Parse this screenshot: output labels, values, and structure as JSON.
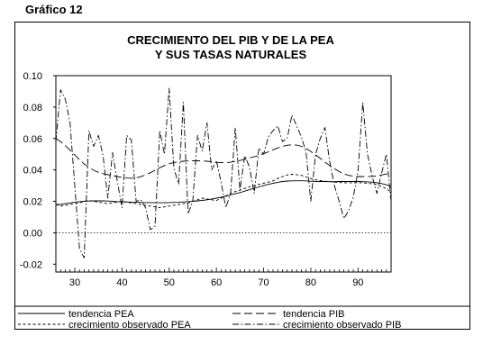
{
  "page_label": "Gráfico 12",
  "chart_data": {
    "type": "line",
    "title_lines": [
      "CRECIMIENTO DEL PIB Y DE LA PEA",
      "Y SUS TASAS NATURALES"
    ],
    "xlabel": "",
    "ylabel": "",
    "xlim": [
      1926,
      1997
    ],
    "ylim": [
      -0.025,
      0.1
    ],
    "x_ticks": [
      30,
      40,
      50,
      60,
      70,
      80,
      90
    ],
    "y_ticks": [
      "0.10",
      "0.08",
      "0.06",
      "0.04",
      "0.02",
      "0.00",
      "-0.02"
    ],
    "y_tick_values": [
      0.1,
      0.08,
      0.06,
      0.04,
      0.02,
      0.0,
      -0.02
    ],
    "zero_reference_line": true,
    "grid": false,
    "legend_position": "bottom",
    "x": [
      1926,
      1927,
      1928,
      1929,
      1930,
      1931,
      1932,
      1933,
      1934,
      1935,
      1936,
      1937,
      1938,
      1939,
      1940,
      1941,
      1942,
      1943,
      1944,
      1945,
      1946,
      1947,
      1948,
      1949,
      1950,
      1951,
      1952,
      1953,
      1954,
      1955,
      1956,
      1957,
      1958,
      1959,
      1960,
      1961,
      1962,
      1963,
      1964,
      1965,
      1966,
      1967,
      1968,
      1969,
      1970,
      1971,
      1972,
      1973,
      1974,
      1975,
      1976,
      1977,
      1978,
      1979,
      1980,
      1981,
      1982,
      1983,
      1984,
      1985,
      1986,
      1987,
      1988,
      1989,
      1990,
      1991,
      1992,
      1993,
      1994,
      1995,
      1996,
      1997
    ],
    "series": [
      {
        "name": "tendencia PEA",
        "style": "solid",
        "values": [
          0.018,
          0.018,
          0.0185,
          0.019,
          0.0195,
          0.0198,
          0.02,
          0.0202,
          0.0203,
          0.0203,
          0.0203,
          0.0202,
          0.02,
          0.0198,
          0.0197,
          0.0196,
          0.0195,
          0.0194,
          0.0193,
          0.0192,
          0.0192,
          0.0191,
          0.0191,
          0.0191,
          0.0192,
          0.0193,
          0.0194,
          0.0196,
          0.0198,
          0.02,
          0.0203,
          0.0206,
          0.021,
          0.0215,
          0.022,
          0.0226,
          0.0233,
          0.024,
          0.0248,
          0.0256,
          0.0265,
          0.0274,
          0.0283,
          0.0292,
          0.03,
          0.0308,
          0.0315,
          0.0321,
          0.0326,
          0.0329,
          0.033,
          0.0331,
          0.0331,
          0.033,
          0.0328,
          0.0327,
          0.0326,
          0.0326,
          0.0325,
          0.0325,
          0.0326,
          0.0326,
          0.0326,
          0.0326,
          0.0326,
          0.0325,
          0.0324,
          0.0322,
          0.0318,
          0.0313,
          0.0305,
          0.0295
        ]
      },
      {
        "name": "tendencia PIB",
        "style": "long-dash",
        "values": [
          0.06,
          0.058,
          0.0555,
          0.0525,
          0.0495,
          0.0465,
          0.0438,
          0.0415,
          0.0398,
          0.0385,
          0.0376,
          0.037,
          0.0364,
          0.0358,
          0.0352,
          0.0348,
          0.0347,
          0.035,
          0.0357,
          0.0368,
          0.0382,
          0.0398,
          0.0414,
          0.0428,
          0.0439,
          0.0447,
          0.0452,
          0.0455,
          0.0457,
          0.0458,
          0.0458,
          0.0457,
          0.0455,
          0.0452,
          0.0448,
          0.0446,
          0.0446,
          0.0449,
          0.0454,
          0.046,
          0.0468,
          0.0476,
          0.0484,
          0.0492,
          0.0503,
          0.0515,
          0.0528,
          0.054,
          0.055,
          0.0557,
          0.056,
          0.0558,
          0.055,
          0.0536,
          0.0518,
          0.0496,
          0.0473,
          0.045,
          0.0428,
          0.0408,
          0.039,
          0.0375,
          0.0365,
          0.036,
          0.0358,
          0.0358,
          0.0358,
          0.0359,
          0.0362,
          0.0368,
          0.0374,
          0.0378
        ]
      },
      {
        "name": "crecimiento observado PEA",
        "style": "short-dash",
        "values": [
          0.018,
          0.017,
          0.0175,
          0.018,
          0.0185,
          0.019,
          0.02,
          0.0205,
          0.02,
          0.0195,
          0.019,
          0.0185,
          0.019,
          0.0195,
          0.02,
          0.0195,
          0.019,
          0.0185,
          0.018,
          0.0175,
          0.017,
          0.0165,
          0.016,
          0.0165,
          0.017,
          0.0175,
          0.018,
          0.0185,
          0.019,
          0.02,
          0.021,
          0.022,
          0.0215,
          0.021,
          0.0205,
          0.022,
          0.0235,
          0.025,
          0.0262,
          0.0272,
          0.0282,
          0.0292,
          0.03,
          0.0308,
          0.0315,
          0.0322,
          0.033,
          0.0345,
          0.0358,
          0.0368,
          0.0372,
          0.037,
          0.0365,
          0.0355,
          0.0345,
          0.0338,
          0.0332,
          0.0328,
          0.0325,
          0.0322,
          0.032,
          0.0318,
          0.0318,
          0.0318,
          0.0318,
          0.0318,
          0.0315,
          0.0312,
          0.0305,
          0.0295,
          0.028,
          0.026
        ]
      },
      {
        "name": "crecimiento observado PIB",
        "style": "dash-dot",
        "values": [
          0.058,
          0.091,
          0.085,
          0.07,
          0.03,
          -0.01,
          -0.016,
          0.065,
          0.055,
          0.062,
          0.049,
          0.022,
          0.051,
          0.033,
          0.016,
          0.062,
          0.059,
          0.02,
          0.021,
          0.016,
          0.002,
          0.004,
          0.065,
          0.05,
          0.092,
          0.041,
          0.031,
          0.083,
          0.012,
          0.02,
          0.062,
          0.052,
          0.07,
          0.04,
          0.046,
          0.032,
          0.016,
          0.025,
          0.067,
          0.027,
          0.049,
          0.042,
          0.025,
          0.054,
          0.05,
          0.061,
          0.065,
          0.068,
          0.058,
          0.06,
          0.075,
          0.068,
          0.061,
          0.051,
          0.02,
          0.05,
          0.06,
          0.067,
          0.045,
          0.03,
          0.02,
          0.009,
          0.014,
          0.023,
          0.039,
          0.083,
          0.05,
          0.036,
          0.025,
          0.038,
          0.05,
          0.02
        ]
      }
    ]
  }
}
